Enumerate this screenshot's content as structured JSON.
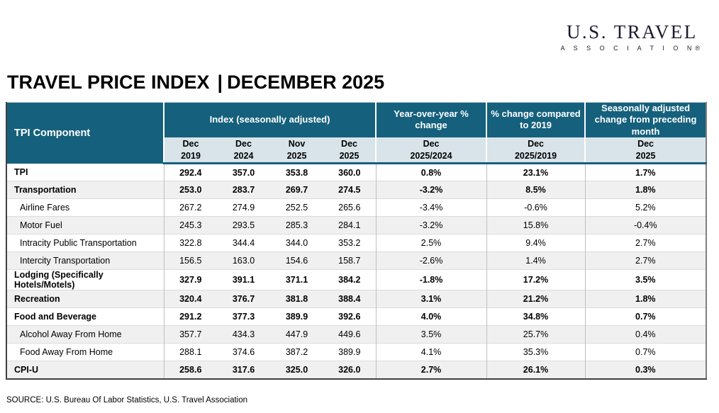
{
  "logo": {
    "line1": "U.S. TRAVEL",
    "line2": "A S S O C I A T I O N®"
  },
  "title": {
    "main": "TRAVEL PRICE INDEX",
    "separator": "|",
    "period": "DECEMBER 2025"
  },
  "source": "SOURCE: U.S. Bureau Of Labor Statistics, U.S. Travel Association",
  "colors": {
    "header_teal": "#15607C",
    "subheader_bg": "#D8E4E9",
    "stripe_gray": "#F0F0F0"
  },
  "chart_data": {
    "type": "table",
    "title": "TRAVEL PRICE INDEX | DECEMBER 2025",
    "columns": [
      "TPI Component",
      "Dec 2019",
      "Dec 2024",
      "Nov 2025",
      "Dec 2025",
      "Dec 2025/2024",
      "Dec 2025/2019",
      "Dec 2025"
    ],
    "rows": [
      [
        "TPI",
        "292.4",
        "357.0",
        "353.8",
        "360.0",
        "0.8%",
        "23.1%",
        "1.7%"
      ],
      [
        "Transportation",
        "253.0",
        "283.7",
        "269.7",
        "274.5",
        "-3.2%",
        "8.5%",
        "1.8%"
      ],
      [
        "Airline Fares",
        "267.2",
        "274.9",
        "252.5",
        "265.6",
        "-3.4%",
        "-0.6%",
        "5.2%"
      ],
      [
        "Motor Fuel",
        "245.3",
        "293.5",
        "285.3",
        "284.1",
        "-3.2%",
        "15.8%",
        "-0.4%"
      ],
      [
        "Intracity Public Transportation",
        "322.8",
        "344.4",
        "344.0",
        "353.2",
        "2.5%",
        "9.4%",
        "2.7%"
      ],
      [
        "Intercity Transportation",
        "156.5",
        "163.0",
        "154.6",
        "158.7",
        "-2.6%",
        "1.4%",
        "2.7%"
      ],
      [
        "Lodging (Specifically Hotels/Motels)",
        "327.9",
        "391.1",
        "371.1",
        "384.2",
        "-1.8%",
        "17.2%",
        "3.5%"
      ],
      [
        "Recreation",
        "320.4",
        "376.7",
        "381.8",
        "388.4",
        "3.1%",
        "21.2%",
        "1.8%"
      ],
      [
        "Food and Beverage",
        "291.2",
        "377.3",
        "389.9",
        "392.6",
        "4.0%",
        "34.8%",
        "0.7%"
      ],
      [
        "Alcohol Away From Home",
        "357.7",
        "434.3",
        "447.9",
        "449.6",
        "3.5%",
        "25.7%",
        "0.4%"
      ],
      [
        "Food Away From Home",
        "288.1",
        "374.6",
        "387.2",
        "389.9",
        "4.1%",
        "35.3%",
        "0.7%"
      ],
      [
        "CPI-U",
        "258.6",
        "317.6",
        "325.0",
        "326.0",
        "2.7%",
        "26.1%",
        "0.3%"
      ]
    ]
  },
  "table": {
    "component_header": "TPI Component",
    "groups": [
      {
        "label": "Index  (seasonally adjusted)",
        "subcolumns": [
          {
            "line1": "Dec",
            "line2": "2019"
          },
          {
            "line1": "Dec",
            "line2": "2024"
          },
          {
            "line1": "Nov",
            "line2": "2025"
          },
          {
            "line1": "Dec",
            "line2": "2025"
          }
        ]
      },
      {
        "label": "Year-over-year % change",
        "subcolumns": [
          {
            "line1": "Dec",
            "line2": "2025/2024"
          }
        ]
      },
      {
        "label": "% change compared to 2019",
        "subcolumns": [
          {
            "line1": "Dec",
            "line2": "2025/2019"
          }
        ]
      },
      {
        "label": "Seasonally adjusted change from preceding month",
        "subcolumns": [
          {
            "line1": "Dec",
            "line2": "2025"
          }
        ]
      }
    ],
    "rows": [
      {
        "label": "TPI",
        "bold": true,
        "indent": false,
        "values": [
          "292.4",
          "357.0",
          "353.8",
          "360.0",
          "0.8%",
          "23.1%",
          "1.7%"
        ]
      },
      {
        "label": "Transportation",
        "bold": true,
        "indent": false,
        "values": [
          "253.0",
          "283.7",
          "269.7",
          "274.5",
          "-3.2%",
          "8.5%",
          "1.8%"
        ]
      },
      {
        "label": "Airline Fares",
        "bold": false,
        "indent": true,
        "values": [
          "267.2",
          "274.9",
          "252.5",
          "265.6",
          "-3.4%",
          "-0.6%",
          "5.2%"
        ]
      },
      {
        "label": "Motor Fuel",
        "bold": false,
        "indent": true,
        "values": [
          "245.3",
          "293.5",
          "285.3",
          "284.1",
          "-3.2%",
          "15.8%",
          "-0.4%"
        ]
      },
      {
        "label": "Intracity Public Transportation",
        "bold": false,
        "indent": true,
        "values": [
          "322.8",
          "344.4",
          "344.0",
          "353.2",
          "2.5%",
          "9.4%",
          "2.7%"
        ]
      },
      {
        "label": "Intercity Transportation",
        "bold": false,
        "indent": true,
        "values": [
          "156.5",
          "163.0",
          "154.6",
          "158.7",
          "-2.6%",
          "1.4%",
          "2.7%"
        ]
      },
      {
        "label": "Lodging (Specifically Hotels/Motels)",
        "bold": true,
        "indent": false,
        "values": [
          "327.9",
          "391.1",
          "371.1",
          "384.2",
          "-1.8%",
          "17.2%",
          "3.5%"
        ]
      },
      {
        "label": "Recreation",
        "bold": true,
        "indent": false,
        "values": [
          "320.4",
          "376.7",
          "381.8",
          "388.4",
          "3.1%",
          "21.2%",
          "1.8%"
        ]
      },
      {
        "label": "Food and Beverage",
        "bold": true,
        "indent": false,
        "values": [
          "291.2",
          "377.3",
          "389.9",
          "392.6",
          "4.0%",
          "34.8%",
          "0.7%"
        ]
      },
      {
        "label": "Alcohol Away From Home",
        "bold": false,
        "indent": true,
        "values": [
          "357.7",
          "434.3",
          "447.9",
          "449.6",
          "3.5%",
          "25.7%",
          "0.4%"
        ]
      },
      {
        "label": "Food Away From Home",
        "bold": false,
        "indent": true,
        "values": [
          "288.1",
          "374.6",
          "387.2",
          "389.9",
          "4.1%",
          "35.3%",
          "0.7%"
        ]
      },
      {
        "label": "CPI-U",
        "bold": true,
        "indent": false,
        "values": [
          "258.6",
          "317.6",
          "325.0",
          "326.0",
          "2.7%",
          "26.1%",
          "0.3%"
        ]
      }
    ]
  }
}
